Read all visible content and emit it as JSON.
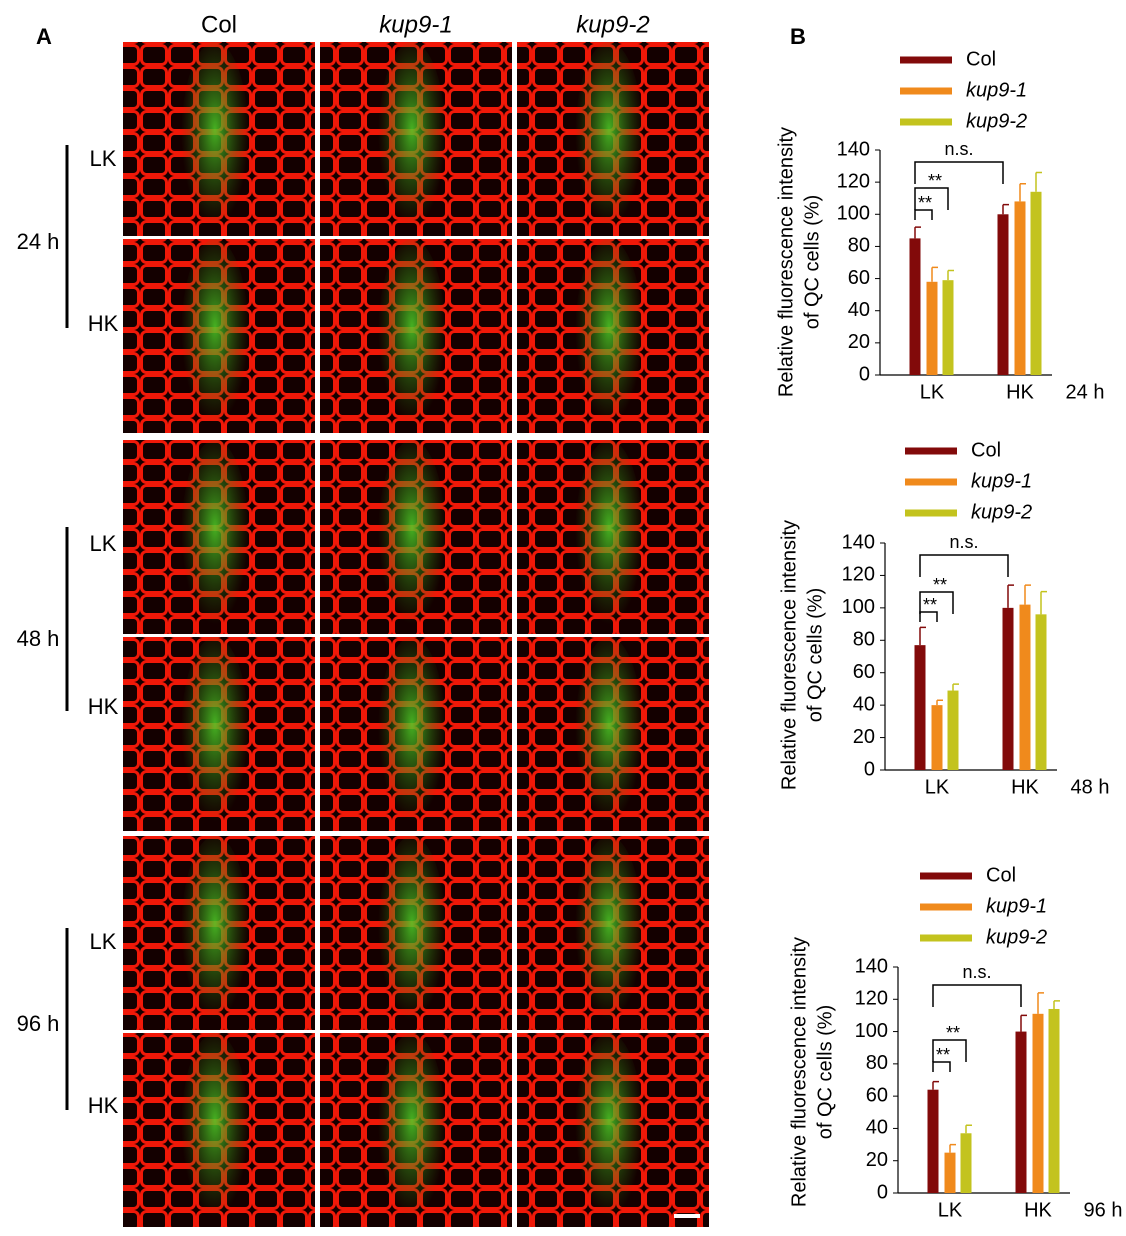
{
  "panel_a": {
    "label": "A",
    "columns": [
      "Col",
      "kup9-1",
      "kup9-2"
    ],
    "times": [
      "24 h",
      "48 h",
      "96 h"
    ],
    "conditions": [
      "LK",
      "HK"
    ]
  },
  "panel_b_label": "B",
  "chart_data": [
    {
      "type": "bar",
      "categories": [
        "LK",
        "HK"
      ],
      "xlabel": "24 h",
      "ylabel": [
        "Relative fluorescence intensity",
        "of QC cells (%)"
      ],
      "ylim": [
        0,
        140
      ],
      "yticks": [
        0,
        20,
        40,
        60,
        80,
        100,
        120,
        140
      ],
      "annotations": [
        "n.s.",
        "**",
        "**"
      ],
      "series": [
        {
          "name": "Col",
          "color": "#820a0a",
          "values": [
            85,
            100
          ],
          "errors": [
            7,
            6
          ]
        },
        {
          "name": "kup9-1",
          "color": "#f08a1c",
          "values": [
            58,
            108
          ],
          "errors": [
            9,
            11
          ]
        },
        {
          "name": "kup9-2",
          "color": "#c3c31e",
          "values": [
            59,
            114
          ],
          "errors": [
            6,
            12
          ]
        }
      ]
    },
    {
      "type": "bar",
      "categories": [
        "LK",
        "HK"
      ],
      "xlabel": "48 h",
      "ylabel": [
        "Relative fluorescence intensity",
        "of QC cells (%)"
      ],
      "ylim": [
        0,
        140
      ],
      "yticks": [
        0,
        20,
        40,
        60,
        80,
        100,
        120,
        140
      ],
      "annotations": [
        "n.s.",
        "**",
        "**"
      ],
      "series": [
        {
          "name": "Col",
          "color": "#820a0a",
          "values": [
            77,
            100
          ],
          "errors": [
            11,
            14
          ]
        },
        {
          "name": "kup9-1",
          "color": "#f08a1c",
          "values": [
            40,
            102
          ],
          "errors": [
            3,
            12
          ]
        },
        {
          "name": "kup9-2",
          "color": "#c3c31e",
          "values": [
            49,
            96
          ],
          "errors": [
            4,
            14
          ]
        }
      ]
    },
    {
      "type": "bar",
      "categories": [
        "LK",
        "HK"
      ],
      "xlabel": "96 h",
      "ylabel": [
        "Relative fluorescence intensity",
        "of QC cells (%)"
      ],
      "ylim": [
        0,
        140
      ],
      "yticks": [
        0,
        20,
        40,
        60,
        80,
        100,
        120,
        140
      ],
      "annotations": [
        "n.s.",
        "**",
        "**"
      ],
      "series": [
        {
          "name": "Col",
          "color": "#820a0a",
          "values": [
            64,
            100
          ],
          "errors": [
            5,
            10
          ]
        },
        {
          "name": "kup9-1",
          "color": "#f08a1c",
          "values": [
            25,
            111
          ],
          "errors": [
            5,
            13
          ]
        },
        {
          "name": "kup9-2",
          "color": "#c3c31e",
          "values": [
            37,
            114
          ],
          "errors": [
            5,
            5
          ]
        }
      ]
    }
  ]
}
